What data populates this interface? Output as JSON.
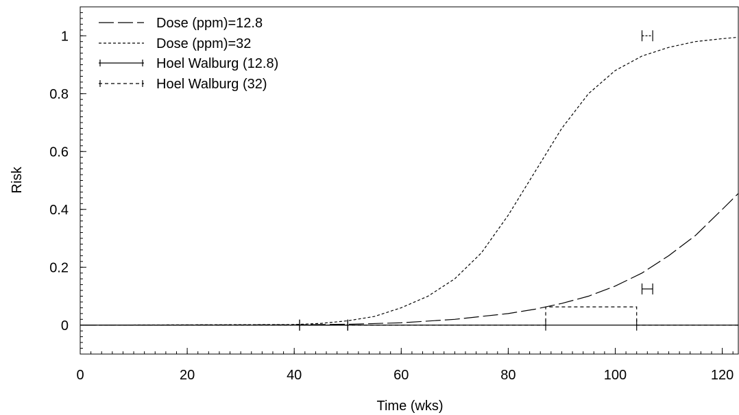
{
  "chart_data": {
    "type": "line",
    "title": "",
    "xlabel": "Time (wks)",
    "ylabel": "Risk",
    "xlim": [
      0,
      123
    ],
    "ylim": [
      -0.1,
      1.1
    ],
    "xticks": [
      0,
      20,
      40,
      60,
      80,
      100,
      120
    ],
    "yticks": [
      0,
      0.2,
      0.4,
      0.6,
      0.8,
      1
    ],
    "xtick_labels": [
      "0",
      "20",
      "40",
      "60",
      "80",
      "100",
      "120"
    ],
    "ytick_labels": [
      "0",
      "0.2",
      "0.4",
      "0.6",
      "0.8",
      "1"
    ],
    "grid": false,
    "legend_position": "top-left",
    "series": [
      {
        "name": "Dose (ppm)=12.8",
        "style": "long-dash",
        "x": [
          0,
          40,
          50,
          60,
          70,
          80,
          85,
          90,
          95,
          100,
          105,
          110,
          115,
          120,
          123
        ],
        "y": [
          0,
          0.001,
          0.003,
          0.008,
          0.02,
          0.04,
          0.055,
          0.075,
          0.1,
          0.135,
          0.18,
          0.24,
          0.31,
          0.4,
          0.455
        ]
      },
      {
        "name": "Dose (ppm)=32",
        "style": "short-dash",
        "x": [
          0,
          40,
          45,
          50,
          55,
          60,
          65,
          70,
          75,
          80,
          85,
          90,
          95,
          100,
          105,
          110,
          115,
          120,
          123
        ],
        "y": [
          0,
          0.002,
          0.006,
          0.015,
          0.03,
          0.06,
          0.1,
          0.16,
          0.25,
          0.38,
          0.53,
          0.68,
          0.8,
          0.88,
          0.93,
          0.96,
          0.98,
          0.99,
          0.995
        ]
      },
      {
        "name": "Hoel Walburg (12.8)",
        "style": "solid-step",
        "x": [
          0,
          41,
          41,
          87,
          87,
          104,
          104,
          123
        ],
        "y": [
          0,
          0,
          0,
          0,
          0,
          0,
          0,
          0
        ],
        "error_bars": [
          {
            "x": [
              41,
              50
            ],
            "y": 0
          },
          {
            "x": [
              105,
              107
            ],
            "y": 0.125
          }
        ]
      },
      {
        "name": "Hoel Walburg (32)",
        "style": "dash-step",
        "x": [
          0,
          87,
          87,
          104,
          104,
          123
        ],
        "y": [
          0,
          0,
          0.063,
          0.063,
          0,
          0
        ],
        "error_bars": [
          {
            "x": [
              105,
              107
            ],
            "y": 1.0
          }
        ]
      }
    ]
  }
}
